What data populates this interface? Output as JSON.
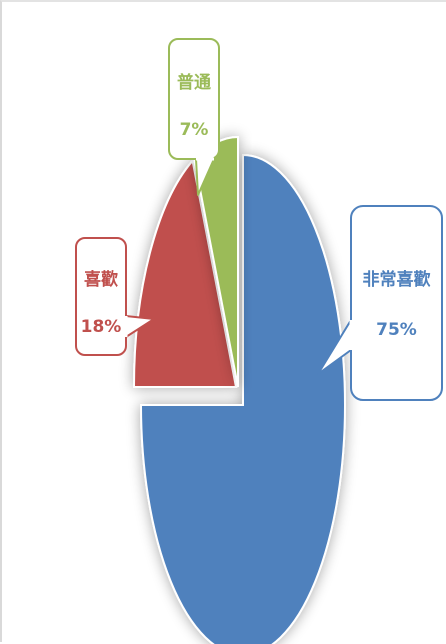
{
  "chart_data": {
    "type": "pie",
    "slices": [
      {
        "label": "非常喜歡",
        "value": 75,
        "value_label": "75%",
        "color": "#4f81bd",
        "label_color": "#4f81bd"
      },
      {
        "label": "喜歡",
        "value": 18,
        "value_label": "18%",
        "color": "#c0504d",
        "label_color": "#c0504d"
      },
      {
        "label": "普通",
        "value": 7,
        "value_label": "7%",
        "color": "#9bbb59",
        "label_color": "#9bbb59"
      }
    ],
    "exploded": true,
    "shadow": true,
    "legend": "none",
    "data_labels": "callouts",
    "unit": "%"
  }
}
